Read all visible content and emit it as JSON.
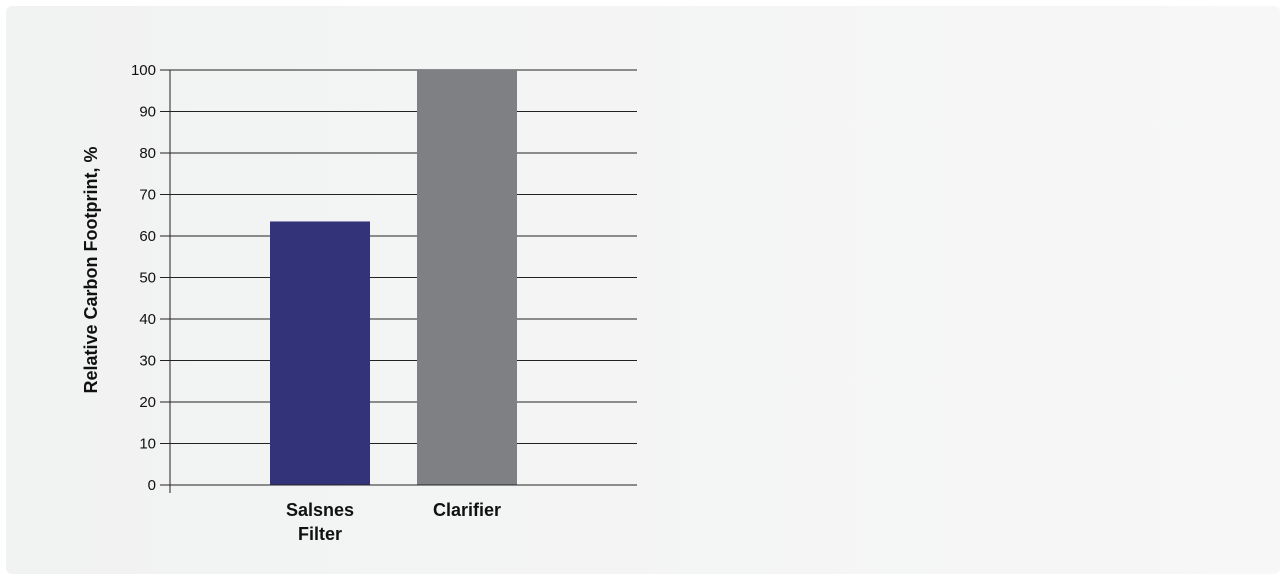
{
  "chart_data": {
    "type": "bar",
    "categories": [
      "Salsnes Filter",
      "Clarifier"
    ],
    "category_label_lines": [
      [
        "Salsnes",
        "Filter"
      ],
      [
        "Clarifier"
      ]
    ],
    "values": [
      63.5,
      100
    ],
    "bar_colors": [
      "#33337a",
      "#7f8084"
    ],
    "title": "",
    "xlabel": "",
    "ylabel": "Relative Carbon Footprint, %",
    "ylim": [
      0,
      100
    ],
    "yticks": [
      0,
      10,
      20,
      30,
      40,
      50,
      60,
      70,
      80,
      90,
      100
    ],
    "grid": true,
    "legend": false
  },
  "colors": {
    "background": "#f4f4f4",
    "gridline": "#222222",
    "text": "#111111"
  }
}
